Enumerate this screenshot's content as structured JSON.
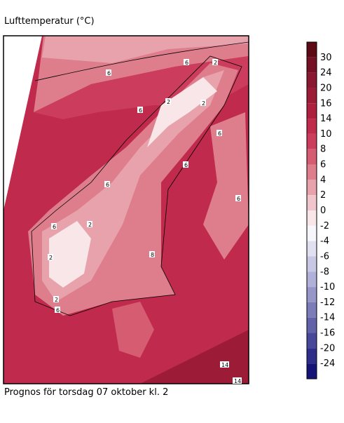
{
  "title": "Lufttemperatur (°C)",
  "footer": "Prognos för torsdag 07 oktober kl. 2",
  "colorbar": {
    "labels": [
      30,
      24,
      20,
      16,
      14,
      10,
      8,
      6,
      4,
      2,
      0,
      -2,
      -4,
      -6,
      -8,
      -10,
      -12,
      -14,
      -16,
      -20,
      -24
    ],
    "colors": [
      "#5c0a14",
      "#761024",
      "#8a1830",
      "#9c1c38",
      "#ae2040",
      "#c02a4c",
      "#cc3c5c",
      "#d65c72",
      "#de7e8c",
      "#e8a2ac",
      "#f0c6cc",
      "#f8e6e9",
      "#f6f6fb",
      "#e0e0f0",
      "#c8c8e4",
      "#b0b0d8",
      "#9696c8",
      "#7c7cb8",
      "#6262a8",
      "#48489a",
      "#2e2e8a",
      "#141478"
    ]
  },
  "contour_labels": [
    "6",
    "6",
    "2",
    "6",
    "2",
    "2",
    "6",
    "6",
    "6",
    "6",
    "6",
    "2",
    "2",
    "8",
    "2",
    "6",
    "14",
    "14"
  ]
}
